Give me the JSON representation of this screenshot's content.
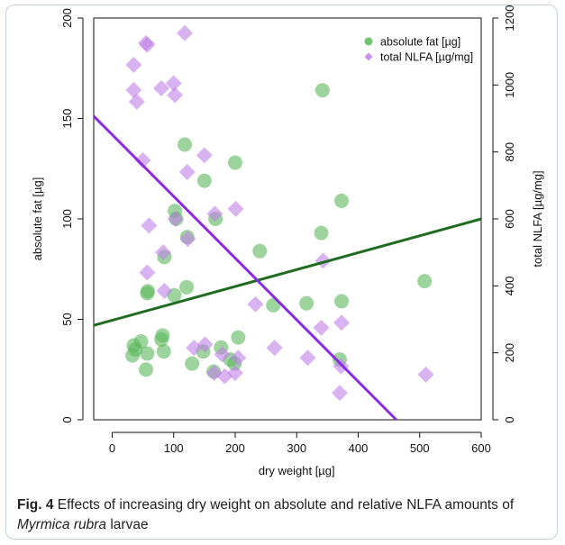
{
  "figure": {
    "label": "Fig. 4",
    "caption_pre": " Effects of increasing dry weight on absolute and relative NLFA amounts of ",
    "caption_species": "Myrmica rubra",
    "caption_post": " larvae"
  },
  "chart_data": {
    "type": "scatter",
    "xlabel": "dry weight [µg]",
    "ylabel_left": "absolute fat [µg]",
    "ylabel_right": "total NLFA [µg/mg]",
    "xlim": [
      -30,
      600
    ],
    "ylim_left": [
      0,
      200
    ],
    "ylim_right": [
      0,
      1200
    ],
    "xticks": [
      0,
      100,
      200,
      300,
      400,
      500,
      600
    ],
    "yticks_left": [
      0,
      50,
      100,
      150,
      200
    ],
    "yticks_right": [
      0,
      200,
      400,
      600,
      800,
      1000,
      1200
    ],
    "legend_position": "top-right",
    "series": [
      {
        "name": "absolute fat [µg]",
        "axis": "left",
        "marker": "circle",
        "color": "#5cb85c",
        "points": [
          [
            33,
            32
          ],
          [
            35,
            37
          ],
          [
            38,
            35
          ],
          [
            47,
            39
          ],
          [
            55,
            25
          ],
          [
            57,
            33
          ],
          [
            57,
            63
          ],
          [
            58,
            64
          ],
          [
            80,
            40
          ],
          [
            82,
            42
          ],
          [
            84,
            34
          ],
          [
            85,
            81
          ],
          [
            101,
            62
          ],
          [
            102,
            104
          ],
          [
            104,
            100
          ],
          [
            118,
            137
          ],
          [
            121,
            66
          ],
          [
            122,
            91
          ],
          [
            130,
            28
          ],
          [
            148,
            34
          ],
          [
            150,
            119
          ],
          [
            165,
            24
          ],
          [
            168,
            100
          ],
          [
            177,
            36
          ],
          [
            192,
            30
          ],
          [
            199,
            28
          ],
          [
            200,
            128
          ],
          [
            205,
            41
          ],
          [
            240,
            84
          ],
          [
            262,
            57
          ],
          [
            316,
            58
          ],
          [
            340,
            93
          ],
          [
            342,
            164
          ],
          [
            370,
            30
          ],
          [
            373,
            59
          ],
          [
            373,
            109
          ],
          [
            508,
            69
          ]
        ]
      },
      {
        "name": "total NLFA [µg/mg]",
        "axis": "right",
        "marker": "diamond",
        "color": "#bf7fe8",
        "points": [
          [
            35,
            1060
          ],
          [
            35,
            985
          ],
          [
            40,
            950
          ],
          [
            50,
            775
          ],
          [
            55,
            1125
          ],
          [
            57,
            1120
          ],
          [
            57,
            440
          ],
          [
            60,
            580
          ],
          [
            80,
            990
          ],
          [
            83,
            500
          ],
          [
            85,
            385
          ],
          [
            100,
            1005
          ],
          [
            102,
            970
          ],
          [
            103,
            600
          ],
          [
            118,
            1155
          ],
          [
            122,
            740
          ],
          [
            123,
            540
          ],
          [
            133,
            215
          ],
          [
            150,
            790
          ],
          [
            151,
            225
          ],
          [
            166,
            140
          ],
          [
            167,
            615
          ],
          [
            179,
            195
          ],
          [
            183,
            130
          ],
          [
            200,
            140
          ],
          [
            201,
            630
          ],
          [
            205,
            185
          ],
          [
            233,
            345
          ],
          [
            264,
            215
          ],
          [
            318,
            185
          ],
          [
            340,
            275
          ],
          [
            343,
            475
          ],
          [
            370,
            80
          ],
          [
            372,
            160
          ],
          [
            373,
            290
          ],
          [
            510,
            135
          ]
        ]
      }
    ],
    "trend_lines": [
      {
        "series": "absolute fat [µg]",
        "axis": "left",
        "color": "#1f6b1f",
        "from": [
          -30,
          47
        ],
        "to": [
          600,
          100
        ]
      },
      {
        "series": "total NLFA [µg/mg]",
        "axis": "right",
        "color": "#8a2be2",
        "from": [
          -30,
          907
        ],
        "to": [
          462,
          0
        ]
      }
    ]
  }
}
